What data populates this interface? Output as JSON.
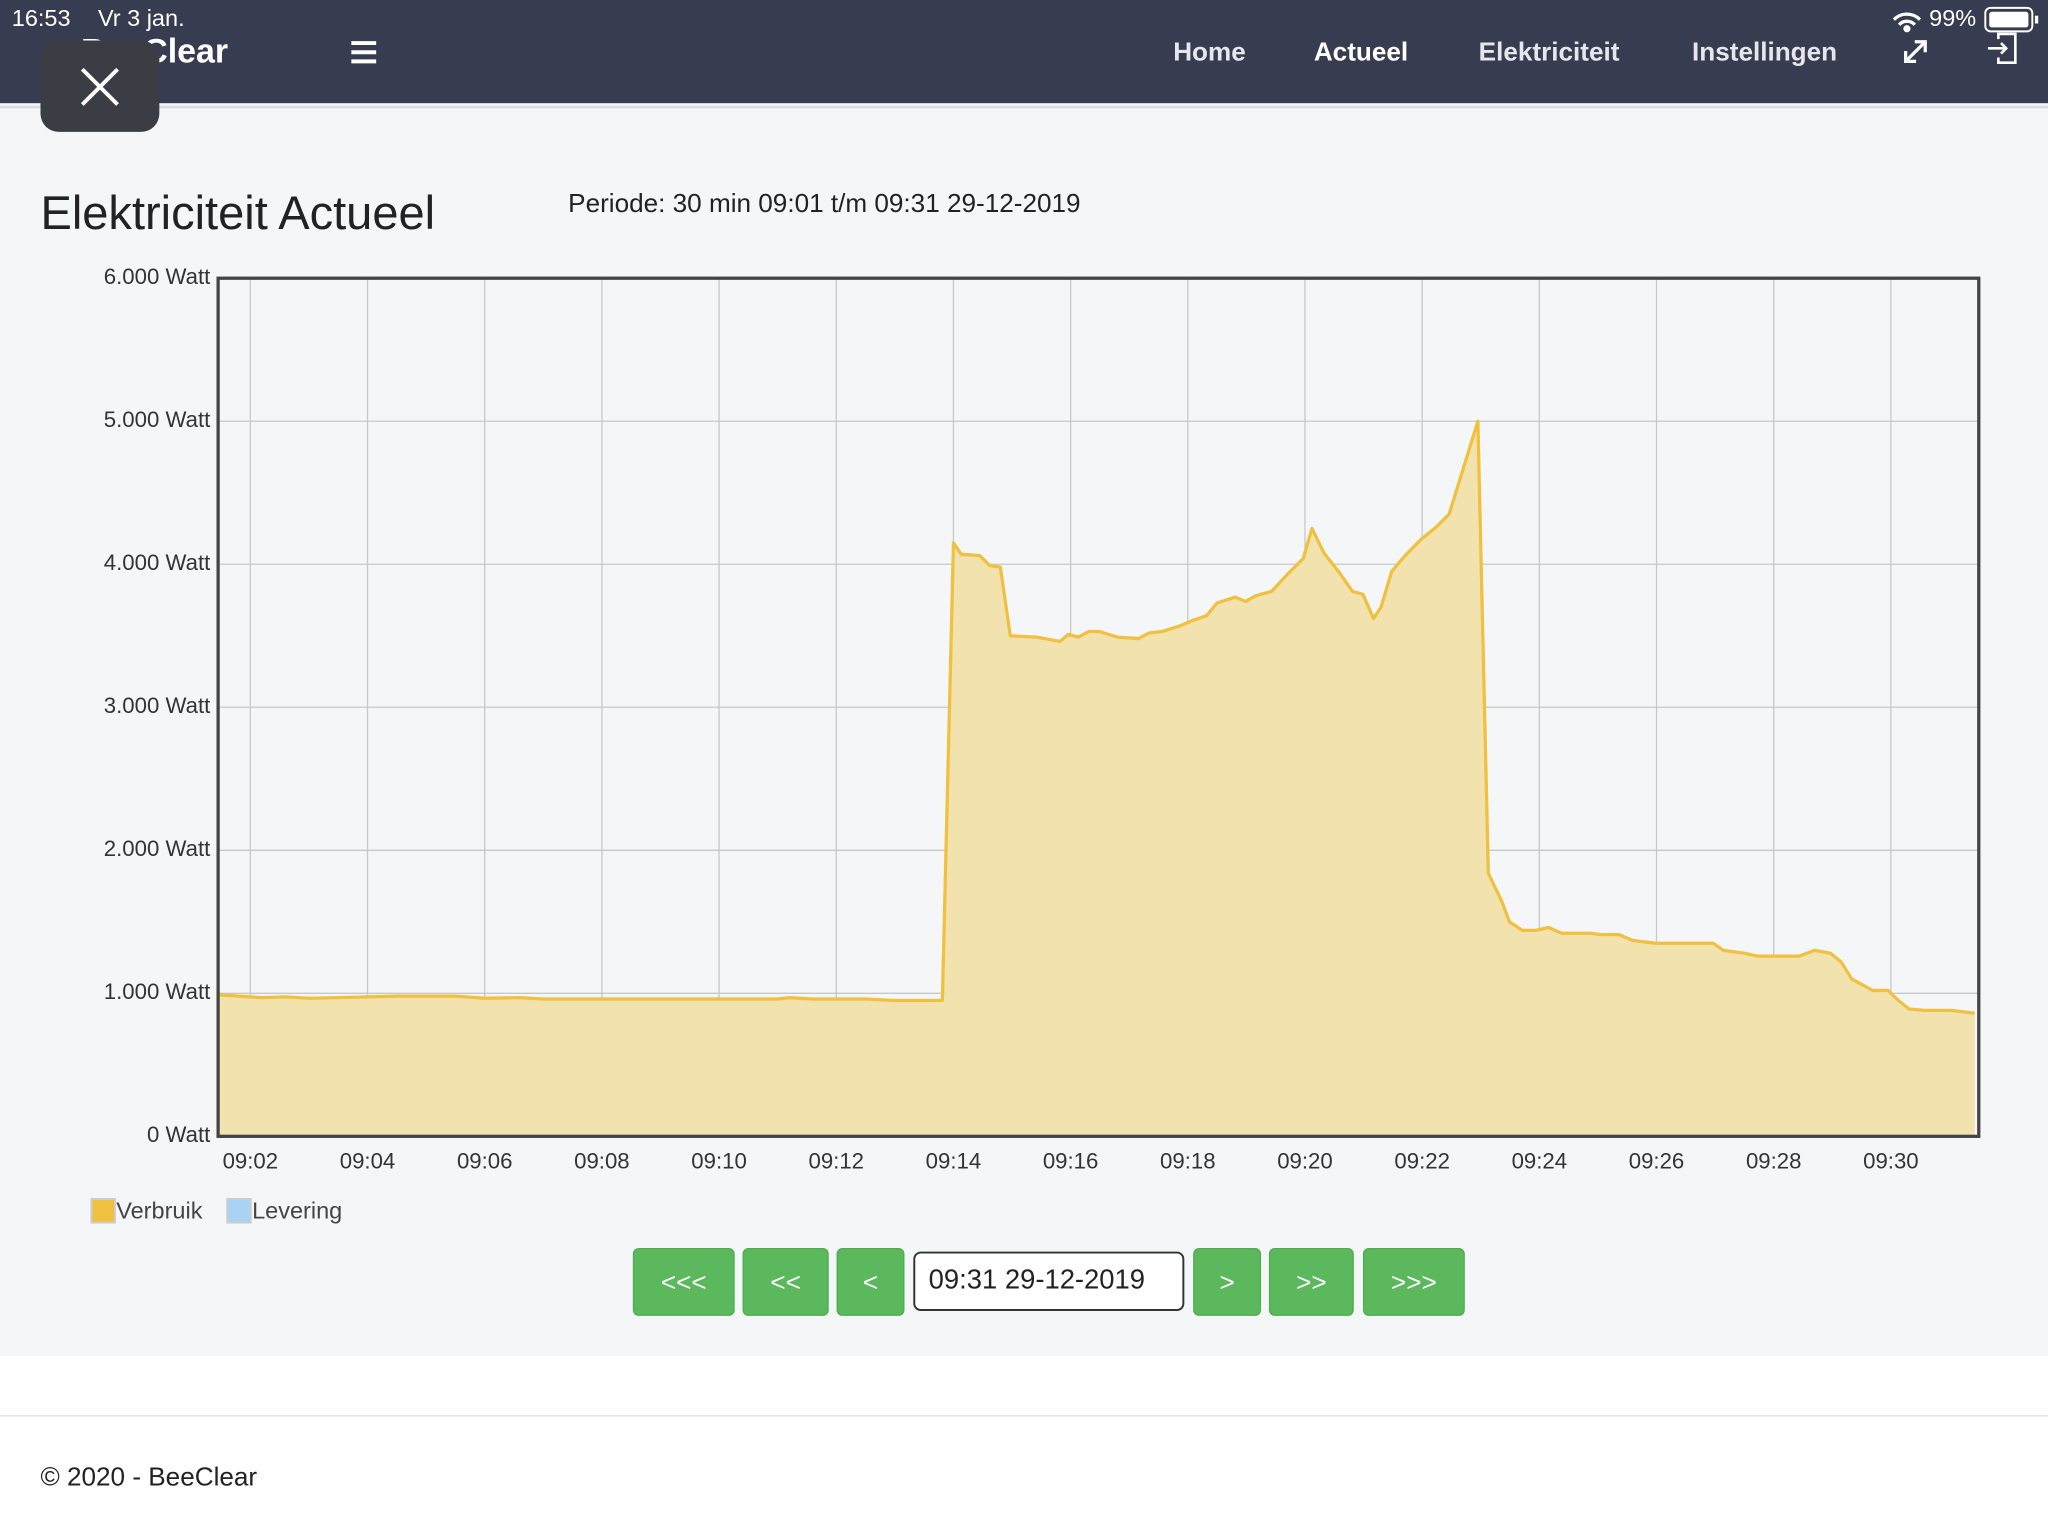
{
  "status_bar": {
    "time": "16:53",
    "date": "Vr 3 jan.",
    "battery": "99%"
  },
  "nav": {
    "brand": "BeeClear",
    "items": [
      "Home",
      "Actueel",
      "Elektriciteit",
      "Instellingen"
    ]
  },
  "page_title": "Elektriciteit Actueel",
  "period": "Periode: 30 min 09:01 t/m 09:31 29-12-2019",
  "chart_data": {
    "type": "area",
    "xlim": [
      1.45,
      31.5
    ],
    "ylim": [
      0,
      6000
    ],
    "xticks": [
      {
        "value": 2,
        "label": "09:02"
      },
      {
        "value": 4,
        "label": "09:04"
      },
      {
        "value": 6,
        "label": "09:06"
      },
      {
        "value": 8,
        "label": "09:08"
      },
      {
        "value": 10,
        "label": "09:10"
      },
      {
        "value": 12,
        "label": "09:12"
      },
      {
        "value": 14,
        "label": "09:14"
      },
      {
        "value": 16,
        "label": "09:16"
      },
      {
        "value": 18,
        "label": "09:18"
      },
      {
        "value": 20,
        "label": "09:20"
      },
      {
        "value": 22,
        "label": "09:22"
      },
      {
        "value": 24,
        "label": "09:24"
      },
      {
        "value": 26,
        "label": "09:26"
      },
      {
        "value": 28,
        "label": "09:28"
      },
      {
        "value": 30,
        "label": "09:30"
      }
    ],
    "yticks": [
      {
        "value": 0,
        "label": "0 Watt"
      },
      {
        "value": 1000,
        "label": "1.000 Watt"
      },
      {
        "value": 2000,
        "label": "2.000 Watt"
      },
      {
        "value": 3000,
        "label": "3.000 Watt"
      },
      {
        "value": 4000,
        "label": "4.000 Watt"
      },
      {
        "value": 5000,
        "label": "5.000 Watt"
      },
      {
        "value": 6000,
        "label": "6.000 Watt"
      }
    ],
    "grid": true,
    "series": [
      {
        "name": "Verbruik",
        "color": "#f0c040",
        "fill": "#f2e2ad",
        "x": [
          1.45,
          1.8,
          2.2,
          2.6,
          3.0,
          3.5,
          4.0,
          4.5,
          5.0,
          5.5,
          6.0,
          6.6,
          7.0,
          8.0,
          9.0,
          10.0,
          11.0,
          11.2,
          11.6,
          12.5,
          13.0,
          13.81,
          14.0,
          14.13,
          14.45,
          14.62,
          14.8,
          14.97,
          15.42,
          15.82,
          15.96,
          16.13,
          16.31,
          16.49,
          16.8,
          17.16,
          17.34,
          17.56,
          17.87,
          18.1,
          18.32,
          18.5,
          18.81,
          18.99,
          19.16,
          19.43,
          19.7,
          19.97,
          20.12,
          20.32,
          20.59,
          20.81,
          20.99,
          21.17,
          21.3,
          21.48,
          21.71,
          21.97,
          22.24,
          22.46,
          22.95,
          23.13,
          23.36,
          23.49,
          23.71,
          23.94,
          24.16,
          24.38,
          24.87,
          25.05,
          25.36,
          25.59,
          25.99,
          26.97,
          27.14,
          27.5,
          27.72,
          28.44,
          28.7,
          28.97,
          29.15,
          29.33,
          29.69,
          29.95,
          30.13,
          30.31,
          30.58,
          31.03,
          31.43
        ],
        "values": [
          990,
          980,
          970,
          975,
          965,
          970,
          975,
          980,
          980,
          980,
          965,
          970,
          960,
          960,
          960,
          960,
          960,
          970,
          960,
          960,
          950,
          950,
          4150,
          4070,
          4060,
          3990,
          3980,
          3500,
          3490,
          3460,
          3510,
          3490,
          3530,
          3530,
          3490,
          3480,
          3520,
          3530,
          3570,
          3610,
          3640,
          3730,
          3770,
          3740,
          3780,
          3810,
          3930,
          4040,
          4250,
          4080,
          3940,
          3810,
          3790,
          3620,
          3700,
          3950,
          4060,
          4170,
          4260,
          4350,
          5000,
          1840,
          1640,
          1500,
          1440,
          1440,
          1460,
          1420,
          1420,
          1410,
          1410,
          1370,
          1350,
          1350,
          1300,
          1280,
          1260,
          1260,
          1300,
          1280,
          1220,
          1100,
          1020,
          1020,
          950,
          890,
          880,
          880,
          860
        ]
      },
      {
        "name": "Levering",
        "color": "#a9d3f5",
        "fill": "#cfe6fa",
        "x": [
          1.45,
          31.43
        ],
        "values": [
          0,
          0
        ]
      }
    ]
  },
  "pager": {
    "back": [
      "<<<",
      "<<",
      "<"
    ],
    "current": "09:31 29-12-2019",
    "forward": [
      ">",
      ">>",
      ">>>"
    ]
  },
  "footer": "© 2020 - BeeClear"
}
